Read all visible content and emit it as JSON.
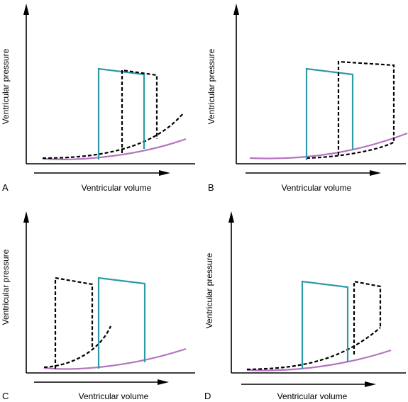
{
  "figure": {
    "panels": [
      {
        "letter": "A",
        "ylabel": "Ventricular pressure",
        "xlabel": "Ventricular volume"
      },
      {
        "letter": "B",
        "ylabel": "Ventricular pressure",
        "xlabel": "Ventricular volume"
      },
      {
        "letter": "C",
        "ylabel": "Ventricular pressure",
        "xlabel": "Ventricular volume"
      },
      {
        "letter": "D",
        "ylabel": "Ventricular pressure",
        "xlabel": "Ventricular volume"
      }
    ],
    "colors": {
      "baseline_loop": "#2e9aa8",
      "altered_loop": "#000000",
      "baseline_compliance_curve": "#b574c2"
    }
  }
}
